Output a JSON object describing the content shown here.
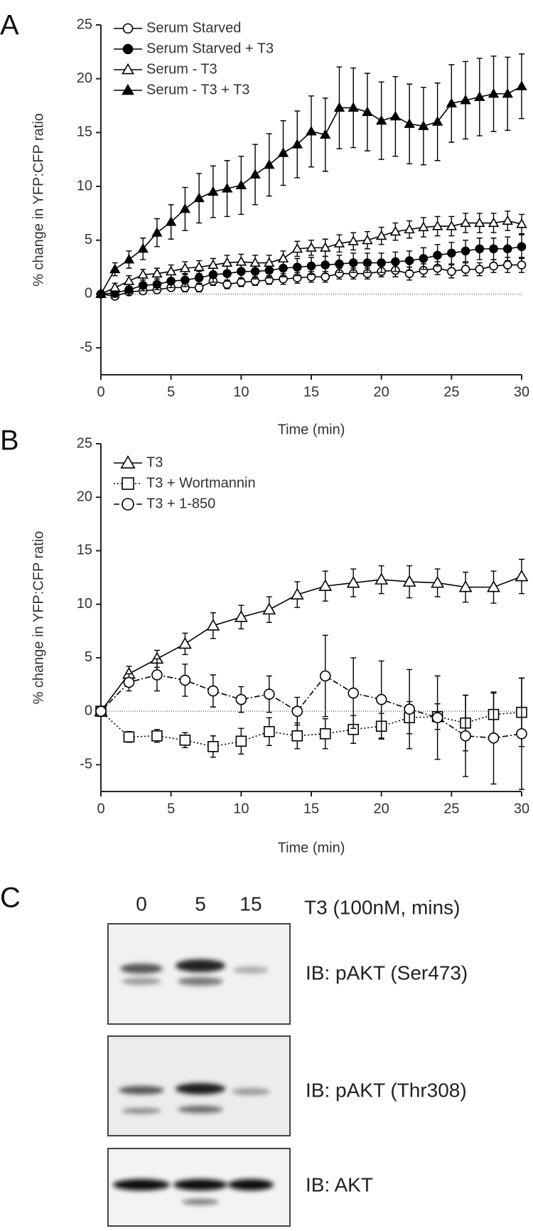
{
  "panel_labels": [
    "A",
    "B",
    "C"
  ],
  "chart_data": [
    {
      "type": "line",
      "y_label": "% change in YFP:CFP ratio",
      "x_label": "Time (min)",
      "x": [
        0,
        1,
        2,
        3,
        4,
        5,
        6,
        7,
        8,
        9,
        10,
        11,
        12,
        13,
        14,
        15,
        16,
        17,
        18,
        19,
        20,
        21,
        22,
        23,
        24,
        25,
        26,
        27,
        28,
        29,
        30
      ],
      "xlim": [
        0,
        30
      ],
      "xticks": [
        0,
        5,
        10,
        15,
        20,
        25,
        30
      ],
      "ylim": [
        -7.5,
        25
      ],
      "yticks": [
        -5,
        0,
        5,
        10,
        15,
        20,
        25
      ],
      "series": [
        {
          "name": "Serum Starved",
          "color": "#000000",
          "marker": "circle-open",
          "dash": "solid",
          "values": [
            0,
            -0.2,
            0.2,
            0.3,
            0.4,
            0.6,
            0.6,
            0.6,
            1.2,
            0.9,
            1.1,
            1.2,
            1.3,
            1.4,
            1.5,
            1.6,
            1.6,
            1.9,
            1.9,
            1.9,
            2.1,
            2.2,
            1.9,
            2.2,
            2.4,
            2.1,
            2.3,
            2.3,
            2.6,
            2.7,
            2.7
          ],
          "errors": [
            0,
            0.3,
            0.3,
            0.3,
            0.3,
            0.3,
            0.4,
            0.4,
            0.4,
            0.4,
            0.4,
            0.4,
            0.4,
            0.5,
            0.5,
            0.5,
            0.5,
            0.5,
            0.5,
            0.5,
            0.5,
            0.6,
            0.6,
            0.6,
            0.6,
            0.6,
            0.6,
            0.6,
            0.6,
            0.7,
            0.7
          ]
        },
        {
          "name": "Serum Starved + T3",
          "color": "#000000",
          "marker": "circle-filled",
          "dash": "solid",
          "values": [
            0,
            0.1,
            0.4,
            0.8,
            0.9,
            1.2,
            1.3,
            1.5,
            1.8,
            1.9,
            2.1,
            2.1,
            2.2,
            2.4,
            2.5,
            2.6,
            2.7,
            2.8,
            2.9,
            2.9,
            2.9,
            3.0,
            3.1,
            3.3,
            3.6,
            3.8,
            4.0,
            4.2,
            4.2,
            4.2,
            4.4
          ],
          "errors": [
            0,
            0.4,
            0.5,
            0.5,
            0.5,
            0.6,
            0.6,
            0.6,
            0.7,
            0.7,
            0.7,
            0.7,
            0.7,
            0.8,
            0.8,
            0.8,
            0.8,
            0.8,
            0.9,
            0.9,
            0.9,
            0.9,
            0.9,
            1.0,
            1.0,
            1.0,
            1.0,
            1.0,
            1.0,
            1.1,
            1.1
          ]
        },
        {
          "name": "Serum - T3",
          "color": "#000000",
          "marker": "triangle-open",
          "dash": "solid",
          "values": [
            0,
            0.6,
            1.2,
            1.8,
            1.9,
            2.1,
            2.4,
            2.5,
            2.7,
            2.9,
            3.0,
            2.9,
            2.9,
            3.3,
            4.2,
            4.3,
            4.3,
            4.7,
            4.9,
            5.0,
            5.4,
            5.8,
            6.0,
            6.2,
            6.3,
            6.3,
            6.6,
            6.6,
            6.6,
            6.8,
            6.5
          ],
          "errors": [
            0,
            0.4,
            0.5,
            0.5,
            0.5,
            0.6,
            0.6,
            0.6,
            0.6,
            0.7,
            0.7,
            0.7,
            0.7,
            0.7,
            0.7,
            0.7,
            0.8,
            0.8,
            0.8,
            0.8,
            0.8,
            0.8,
            0.8,
            0.9,
            0.9,
            0.9,
            0.9,
            0.9,
            0.9,
            0.9,
            0.9
          ]
        },
        {
          "name": "Serum - T3 + T3",
          "color": "#000000",
          "marker": "triangle-filled",
          "dash": "solid",
          "values": [
            0,
            2.3,
            3.2,
            4.2,
            5.7,
            6.7,
            7.9,
            8.9,
            9.5,
            9.8,
            10.1,
            11.1,
            12.0,
            13.1,
            13.9,
            15.1,
            14.8,
            17.3,
            17.3,
            16.9,
            16.1,
            16.5,
            15.8,
            15.6,
            16.0,
            17.7,
            18.0,
            18.3,
            18.6,
            18.6,
            19.3
          ],
          "errors": [
            0,
            0.6,
            0.8,
            1.0,
            1.3,
            1.6,
            2.0,
            2.3,
            2.4,
            2.6,
            2.7,
            2.8,
            2.9,
            3.0,
            3.1,
            3.3,
            3.4,
            3.8,
            3.7,
            3.6,
            3.6,
            3.7,
            3.7,
            3.6,
            3.6,
            3.6,
            3.6,
            3.6,
            3.5,
            3.4,
            3.0
          ]
        }
      ]
    },
    {
      "type": "line",
      "y_label": "% change in YFP:CFP ratio",
      "x_label": "Time (min)",
      "x": [
        0,
        2,
        4,
        6,
        8,
        10,
        12,
        14,
        16,
        18,
        20,
        22,
        24,
        26,
        28,
        30
      ],
      "xlim": [
        0,
        30
      ],
      "xticks": [
        0,
        5,
        10,
        15,
        20,
        25,
        30
      ],
      "ylim": [
        -7.5,
        25
      ],
      "yticks": [
        -5,
        0,
        5,
        10,
        15,
        20,
        25
      ],
      "series": [
        {
          "name": "T3",
          "color": "#000000",
          "marker": "triangle-open",
          "dash": "solid",
          "values": [
            0,
            3.5,
            4.9,
            6.3,
            8.0,
            8.8,
            9.5,
            10.9,
            11.7,
            12.0,
            12.3,
            12.1,
            12.0,
            11.6,
            11.6,
            12.6
          ],
          "errors": [
            0,
            0.7,
            0.8,
            1.0,
            1.2,
            1.1,
            1.2,
            1.2,
            1.4,
            1.3,
            1.3,
            1.5,
            1.3,
            1.4,
            1.5,
            1.6
          ]
        },
        {
          "name": "T3 + Wortmannin",
          "color": "#000000",
          "marker": "square-open",
          "dash": "dotted",
          "values": [
            0,
            -2.4,
            -2.3,
            -2.7,
            -3.3,
            -2.8,
            -1.9,
            -2.3,
            -2.1,
            -1.7,
            -1.4,
            -0.6,
            -0.5,
            -1.1,
            -0.3,
            -0.1
          ],
          "errors": [
            0,
            0.5,
            0.6,
            0.7,
            1.0,
            1.2,
            1.3,
            1.2,
            1.4,
            1.3,
            1.2,
            1.5,
            1.2,
            2.6,
            2.0,
            3.2
          ]
        },
        {
          "name": "T3 + 1-850",
          "color": "#000000",
          "marker": "circle-open",
          "dash": "dashdot",
          "values": [
            0,
            2.7,
            3.4,
            2.9,
            1.9,
            1.1,
            1.6,
            0.0,
            3.3,
            1.7,
            1.1,
            0.2,
            -0.6,
            -2.3,
            -2.5,
            -2.1
          ],
          "errors": [
            0,
            0.8,
            1.5,
            1.5,
            1.5,
            1.2,
            1.7,
            1.3,
            3.8,
            3.3,
            3.6,
            3.7,
            3.9,
            3.8,
            4.3,
            5.2
          ]
        }
      ]
    }
  ],
  "blot": {
    "lanes": [
      "0",
      "5",
      "15"
    ],
    "treatment": "T3 (100nM, mins)",
    "rows": [
      "IB: pAKT (Ser473)",
      "IB: pAKT (Thr308)",
      "IB: AKT"
    ]
  }
}
